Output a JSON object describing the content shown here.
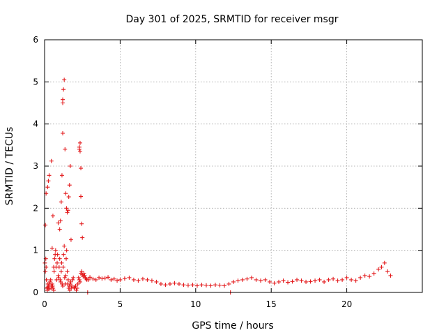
{
  "chart_data": {
    "type": "scatter",
    "title": "Day 301 of 2025, SRMTID for receiver msgr",
    "xlabel": "GPS time / hours",
    "ylabel": "SRMTID / TECUs",
    "xlim": [
      0,
      25
    ],
    "ylim": [
      0,
      6
    ],
    "xticks": [
      0,
      5,
      10,
      15,
      20
    ],
    "yticks": [
      0,
      1,
      2,
      3,
      4,
      5,
      6
    ],
    "grid": true,
    "marker": "+",
    "colors": {
      "series": "#e31a1c",
      "axis": "#000000",
      "grid": "#a0a0a0"
    },
    "series": [
      {
        "name": "SRMTID",
        "x": [
          0.02,
          0.05,
          0.08,
          0.1,
          0.12,
          0.15,
          0.18,
          0.2,
          0.22,
          0.25,
          0.28,
          0.3,
          0.33,
          0.36,
          0.4,
          0.43,
          0.46,
          0.5,
          0.53,
          0.56,
          0.6,
          0.63,
          0.66,
          0.7,
          0.73,
          0.76,
          0.8,
          0.83,
          0.86,
          0.9,
          0.93,
          0.96,
          1.0,
          1.03,
          1.06,
          1.1,
          1.13,
          1.16,
          1.2,
          1.23,
          1.26,
          1.3,
          1.33,
          1.36,
          1.4,
          1.43,
          1.46,
          1.5,
          1.53,
          1.56,
          1.6,
          1.63,
          1.66,
          1.7,
          1.73,
          1.76,
          1.8,
          1.85,
          1.9,
          1.95,
          2.0,
          2.05,
          2.1,
          2.15,
          2.2,
          2.25,
          2.3,
          2.35,
          2.4,
          2.45,
          2.5,
          2.55,
          2.6,
          2.65,
          2.7,
          2.75,
          2.8,
          2.9,
          3.0,
          3.2,
          3.4,
          3.6,
          3.8,
          4.0,
          4.2,
          4.4,
          4.6,
          4.8,
          5.0,
          5.3,
          5.6,
          5.9,
          6.2,
          6.5,
          6.8,
          7.1,
          7.4,
          7.7,
          8.0,
          8.3,
          8.6,
          8.9,
          9.2,
          9.5,
          9.8,
          10.1,
          10.4,
          10.7,
          11.0,
          11.3,
          11.6,
          11.9,
          12.2,
          12.5,
          12.8,
          13.1,
          13.4,
          13.7,
          14.0,
          14.3,
          14.6,
          14.9,
          15.2,
          15.5,
          15.8,
          16.1,
          16.4,
          16.7,
          17.0,
          17.3,
          17.6,
          17.9,
          18.2,
          18.5,
          18.8,
          19.1,
          19.4,
          19.7,
          20.0,
          20.3,
          20.6,
          20.9,
          21.2,
          21.5,
          21.8,
          22.1,
          22.3,
          22.5,
          22.7,
          22.9,
          0.05,
          0.1,
          0.2,
          0.25,
          0.3,
          0.45,
          0.5,
          0.55,
          0.6,
          0.9,
          1.0,
          1.05,
          1.1,
          1.15,
          1.2,
          1.2,
          1.2,
          1.25,
          1.3,
          1.35,
          1.4,
          1.45,
          1.5,
          1.55,
          1.6,
          1.65,
          1.7,
          1.75,
          2.3,
          2.3,
          2.35,
          2.35,
          2.4,
          2.4,
          2.45,
          2.5,
          2.85,
          12.3
        ],
        "y": [
          0.7,
          0.5,
          0.8,
          0.6,
          0.3,
          0.1,
          0.05,
          0.12,
          0.2,
          0.15,
          0.08,
          0.1,
          0.2,
          0.25,
          0.3,
          0.15,
          0.1,
          0.2,
          0.15,
          0.1,
          0.05,
          0.5,
          0.8,
          0.9,
          1.0,
          0.6,
          0.3,
          0.7,
          0.9,
          0.4,
          0.35,
          0.6,
          0.8,
          0.3,
          0.25,
          0.5,
          0.7,
          0.2,
          0.15,
          0.6,
          0.9,
          1.1,
          0.35,
          0.2,
          0.4,
          0.8,
          1.0,
          0.5,
          0.2,
          0.3,
          0.1,
          0.15,
          0.05,
          0.2,
          0.25,
          0.1,
          0.15,
          0.3,
          0.35,
          0.12,
          0.1,
          0.15,
          0.05,
          0.1,
          0.2,
          0.35,
          0.3,
          0.25,
          0.45,
          0.5,
          0.42,
          0.38,
          0.45,
          0.4,
          0.35,
          0.32,
          0.3,
          0.3,
          0.36,
          0.32,
          0.3,
          0.35,
          0.33,
          0.34,
          0.36,
          0.3,
          0.32,
          0.28,
          0.3,
          0.33,
          0.35,
          0.3,
          0.28,
          0.32,
          0.3,
          0.28,
          0.25,
          0.2,
          0.18,
          0.2,
          0.22,
          0.2,
          0.18,
          0.17,
          0.18,
          0.16,
          0.18,
          0.17,
          0.16,
          0.18,
          0.17,
          0.16,
          0.2,
          0.25,
          0.28,
          0.3,
          0.32,
          0.35,
          0.3,
          0.28,
          0.3,
          0.25,
          0.22,
          0.25,
          0.28,
          0.24,
          0.26,
          0.3,
          0.28,
          0.25,
          0.26,
          0.28,
          0.3,
          0.25,
          0.3,
          0.32,
          0.28,
          0.3,
          0.35,
          0.3,
          0.28,
          0.35,
          0.4,
          0.38,
          0.45,
          0.55,
          0.6,
          0.7,
          0.5,
          0.4,
          1.6,
          2.35,
          2.5,
          2.65,
          2.78,
          3.12,
          1.05,
          1.82,
          0.6,
          1.65,
          1.5,
          1.7,
          2.15,
          2.78,
          3.78,
          4.5,
          4.58,
          4.82,
          5.05,
          3.4,
          2.35,
          2.0,
          1.9,
          1.95,
          2.27,
          2.55,
          3.0,
          1.25,
          3.4,
          3.45,
          3.55,
          3.35,
          2.95,
          2.28,
          1.63,
          1.3,
          0.0,
          0.0
        ]
      }
    ]
  }
}
